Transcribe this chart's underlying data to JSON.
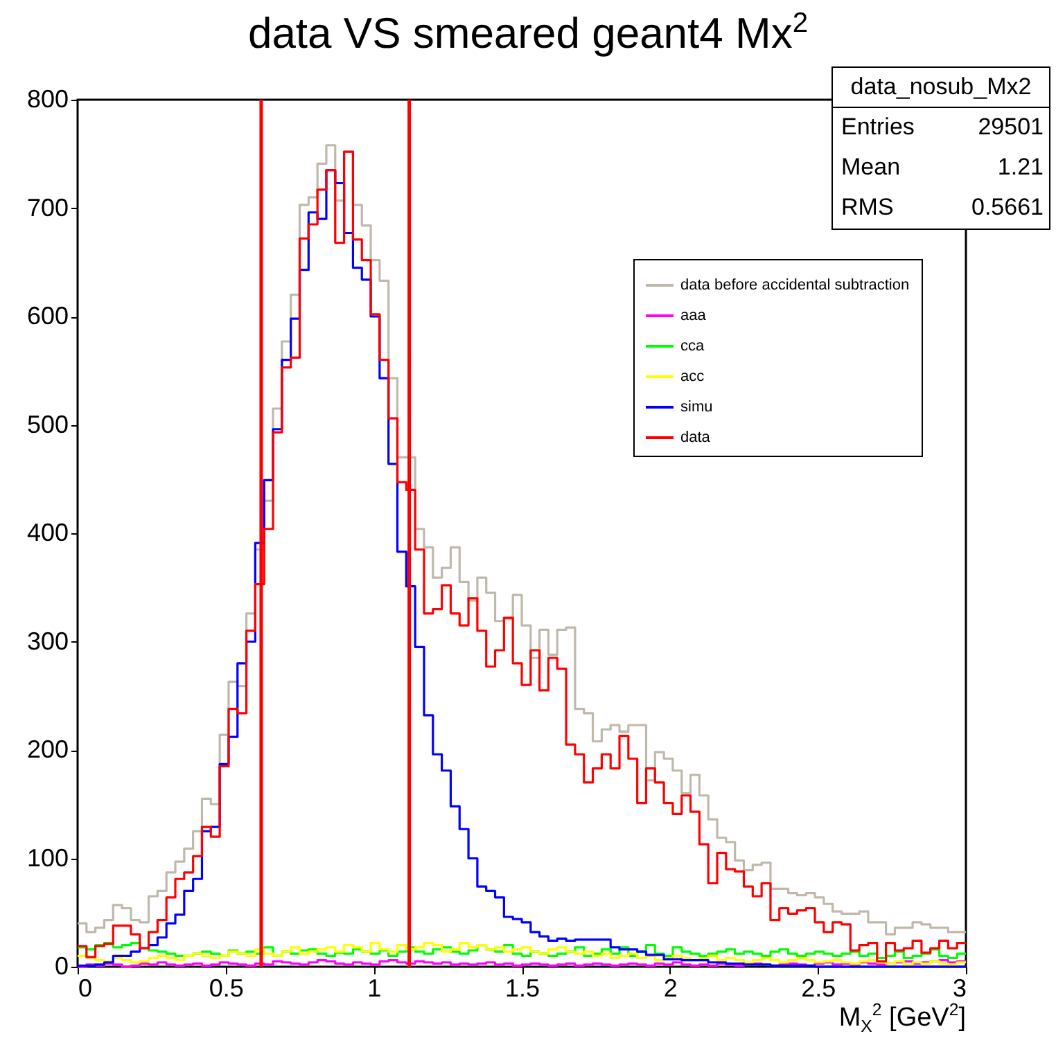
{
  "chart_data": {
    "type": "histogram",
    "title": "data VS smeared geant4 Mx$^{2}$",
    "xlabel": "M$_{X}$$^{2}$ [GeV$^{2}$]",
    "annotations": [
      "data_nosub_Mx2",
      "Entries 29501",
      "Mean 1.21",
      "RMS 0.5661"
    ],
    "bins": [
      0,
      0.03,
      0.06,
      0.09,
      0.12,
      0.15,
      0.18,
      0.21,
      0.24,
      0.27,
      0.3,
      0.33,
      0.36,
      0.39,
      0.42,
      0.45,
      0.48,
      0.51,
      0.54,
      0.57,
      0.6,
      0.63,
      0.66,
      0.69,
      0.72,
      0.75,
      0.78,
      0.81,
      0.84,
      0.87,
      0.9,
      0.93,
      0.96,
      0.99,
      1.02,
      1.05,
      1.08,
      1.11,
      1.14,
      1.17,
      1.2,
      1.23,
      1.26,
      1.29,
      1.32,
      1.35,
      1.38,
      1.41,
      1.44,
      1.47,
      1.5,
      1.53,
      1.56,
      1.59,
      1.62,
      1.65,
      1.68,
      1.71,
      1.74,
      1.77,
      1.8,
      1.83,
      1.86,
      1.89,
      1.92,
      1.95,
      1.98,
      2.01,
      2.04,
      2.07,
      2.1,
      2.13,
      2.16,
      2.19,
      2.22,
      2.25,
      2.28,
      2.31,
      2.34,
      2.37,
      2.4,
      2.43,
      2.46,
      2.49,
      2.52,
      2.55,
      2.58,
      2.61,
      2.64,
      2.67,
      2.7,
      2.73,
      2.76,
      2.79,
      2.82,
      2.85,
      2.88,
      2.91,
      2.94,
      2.97,
      3
    ],
    "series": [
      {
        "name": "data before accidental subtraction",
        "color": "#bfb8ab",
        "values": [
          40,
          32,
          36,
          43,
          57,
          54,
          43,
          41,
          65,
          70,
          87,
          97,
          109,
          125,
          155,
          150,
          214,
          263,
          259,
          326,
          385,
          430,
          515,
          577,
          620,
          703,
          710,
          741,
          758,
          707,
          752,
          703,
          684,
          652,
          633,
          543,
          470,
          470,
          404,
          387,
          359,
          368,
          387,
          355,
          338,
          359,
          345,
          319,
          321,
          343,
          315,
          285,
          311,
          288,
          311,
          313,
          238,
          234,
          208,
          219,
          223,
          217,
          223,
          223,
          172,
          198,
          192,
          181,
          160,
          177,
          158,
          136,
          119,
          115,
          98,
          89,
          94,
          96,
          72,
          72,
          68,
          66,
          68,
          64,
          58,
          51,
          49,
          49,
          51,
          41,
          41,
          30,
          36,
          36,
          41,
          39,
          36,
          36,
          32,
          32
        ]
      },
      {
        "name": "aaa",
        "color": "#ff00ff",
        "values": [
          0,
          2,
          1,
          3,
          2,
          0,
          1,
          3,
          2,
          4,
          2,
          1,
          2,
          3,
          1,
          2,
          4,
          3,
          2,
          1,
          3,
          2,
          5,
          4,
          3,
          2,
          4,
          6,
          5,
          3,
          2,
          4,
          3,
          2,
          5,
          6,
          4,
          3,
          5,
          4,
          3,
          4,
          2,
          3,
          2,
          3,
          4,
          2,
          3,
          1,
          2,
          3,
          2,
          1,
          2,
          3,
          1,
          2,
          3,
          2,
          1,
          2,
          3,
          2,
          1,
          3,
          2,
          4,
          2,
          1,
          2,
          1,
          3,
          2,
          1,
          2,
          3,
          2,
          1,
          2,
          3,
          2,
          1,
          3,
          4,
          2,
          3,
          2,
          4,
          3,
          2,
          3,
          4,
          5,
          3,
          4,
          5,
          6,
          4,
          5
        ]
      },
      {
        "name": "cca",
        "color": "#00ff00",
        "values": [
          18,
          16,
          20,
          22,
          18,
          20,
          22,
          17,
          15,
          14,
          12,
          10,
          10,
          12,
          14,
          12,
          10,
          15,
          12,
          14,
          12,
          18,
          10,
          14,
          12,
          15,
          16,
          12,
          10,
          13,
          12,
          16,
          14,
          12,
          15,
          10,
          14,
          18,
          14,
          12,
          16,
          18,
          14,
          12,
          15,
          20,
          16,
          14,
          20,
          12,
          10,
          14,
          12,
          10,
          12,
          14,
          18,
          10,
          12,
          16,
          12,
          18,
          10,
          14,
          20,
          12,
          10,
          18,
          14,
          12,
          10,
          12,
          14,
          16,
          12,
          14,
          12,
          10,
          14,
          16,
          12,
          10,
          12,
          14,
          12,
          10,
          12,
          14,
          10,
          12,
          8,
          10,
          14,
          8,
          10,
          12,
          16,
          10,
          8,
          12
        ]
      },
      {
        "name": "acc",
        "color": "#ffff00",
        "values": [
          10,
          8,
          6,
          5,
          8,
          6,
          4,
          5,
          8,
          10,
          8,
          6,
          10,
          12,
          10,
          8,
          10,
          14,
          12,
          10,
          16,
          12,
          10,
          14,
          18,
          12,
          14,
          16,
          18,
          14,
          20,
          18,
          14,
          22,
          16,
          14,
          20,
          16,
          18,
          22,
          20,
          14,
          16,
          22,
          18,
          20,
          16,
          18,
          14,
          16,
          18,
          14,
          12,
          16,
          18,
          14,
          12,
          14,
          10,
          12,
          8,
          10,
          12,
          8,
          10,
          6,
          8,
          10,
          8,
          6,
          8,
          10,
          6,
          8,
          6,
          4,
          6,
          8,
          6,
          4,
          6,
          8,
          6,
          4,
          5,
          6,
          4,
          3,
          5,
          6,
          4,
          3,
          5,
          2,
          4,
          3,
          5,
          3,
          2,
          4
        ]
      },
      {
        "name": "simu",
        "color": "#0000ff",
        "values": [
          1,
          1,
          2,
          4,
          10,
          10,
          14,
          17,
          20,
          27,
          40,
          48,
          70,
          81,
          125,
          129,
          187,
          212,
          280,
          300,
          391,
          449,
          496,
          560,
          598,
          643,
          696,
          690,
          735,
          723,
          677,
          645,
          634,
          600,
          543,
          464,
          383,
          351,
          295,
          232,
          196,
          181,
          148,
          127,
          100,
          74,
          70,
          64,
          46,
          44,
          41,
          32,
          28,
          24,
          26,
          24,
          25,
          25,
          25,
          25,
          18,
          16,
          16,
          14,
          11,
          11,
          7,
          7,
          6,
          6,
          6,
          4,
          4,
          3,
          3,
          2,
          2,
          2,
          1,
          1,
          1,
          1,
          1,
          0,
          0,
          0,
          0,
          0,
          0,
          0,
          0,
          0,
          0,
          0,
          0,
          0,
          0,
          0,
          0,
          0
        ]
      },
      {
        "name": "data",
        "color": "#ff0000",
        "values": [
          19,
          9,
          19,
          21,
          38,
          38,
          30,
          17,
          32,
          43,
          64,
          81,
          87,
          102,
          129,
          120,
          185,
          238,
          234,
          310,
          353,
          404,
          493,
          553,
          562,
          672,
          685,
          717,
          735,
          668,
          752,
          671,
          652,
          602,
          560,
          506,
          447,
          440,
          385,
          326,
          330,
          352,
          326,
          315,
          340,
          310,
          277,
          292,
          322,
          280,
          260,
          292,
          255,
          285,
          275,
          205,
          196,
          170,
          183,
          196,
          183,
          213,
          192,
          151,
          183,
          170,
          151,
          141,
          158,
          143,
          113,
          77,
          105,
          90,
          88,
          74,
          65,
          77,
          43,
          54,
          49,
          52,
          54,
          41,
          32,
          41,
          39,
          15,
          20,
          22,
          5,
          22,
          15,
          17,
          24,
          13,
          17,
          24,
          17,
          22
        ]
      }
    ],
    "ref_lines": [
      {
        "axis": "x",
        "value": 0.62,
        "color": "#ff0000"
      },
      {
        "axis": "x",
        "value": 1.12,
        "color": "#ff0000"
      }
    ],
    "xlim": [
      0,
      3
    ],
    "xticks": [
      0,
      0.5,
      1,
      1.5,
      2,
      2.5,
      3
    ],
    "ylim": [
      0,
      800
    ],
    "yticks": [
      0,
      100,
      200,
      300,
      400,
      500,
      600,
      700,
      800
    ],
    "grid": false,
    "legend": "top right"
  }
}
